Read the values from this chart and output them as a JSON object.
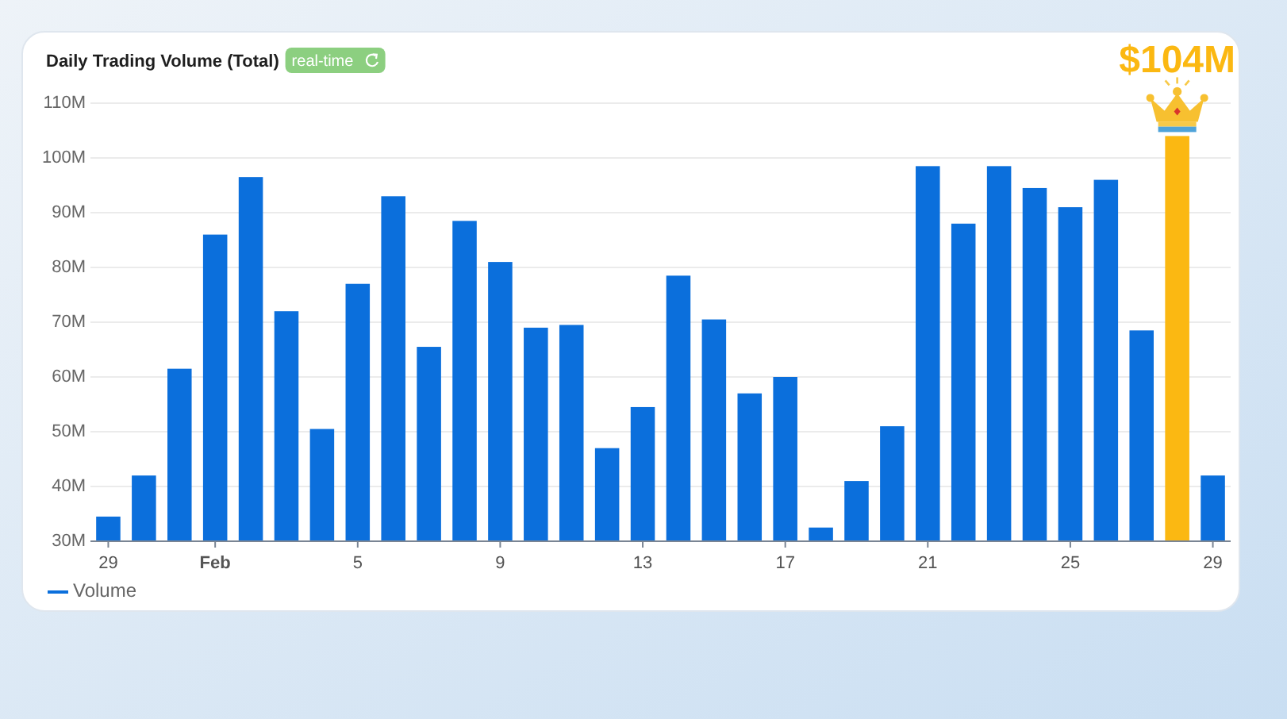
{
  "chart_data": {
    "type": "bar",
    "title": "Daily Trading Volume (Total)",
    "subtitle": "real-time",
    "categories": [
      "29",
      null,
      null,
      "Feb",
      null,
      null,
      null,
      "5",
      null,
      null,
      null,
      "9",
      null,
      null,
      null,
      "13",
      null,
      null,
      null,
      "17",
      null,
      null,
      null,
      "21",
      null,
      null,
      null,
      "25",
      null,
      null,
      null,
      "29"
    ],
    "series": [
      {
        "name": "Volume",
        "color": "#0b6fdc",
        "colors": [
          "#0b6fdc",
          "#0b6fdc",
          "#0b6fdc",
          "#0b6fdc",
          "#0b6fdc",
          "#0b6fdc",
          "#0b6fdc",
          "#0b6fdc",
          "#0b6fdc",
          "#0b6fdc",
          "#0b6fdc",
          "#0b6fdc",
          "#0b6fdc",
          "#0b6fdc",
          "#0b6fdc",
          "#0b6fdc",
          "#0b6fdc",
          "#0b6fdc",
          "#0b6fdc",
          "#0b6fdc",
          "#0b6fdc",
          "#0b6fdc",
          "#0b6fdc",
          "#0b6fdc",
          "#0b6fdc",
          "#0b6fdc",
          "#0b6fdc",
          "#0b6fdc",
          "#0b6fdc",
          "#0b6fdc",
          "#fbb812",
          "#0b6fdc"
        ],
        "values": [
          34.5,
          42,
          61.5,
          86,
          96.5,
          72,
          50.5,
          77,
          93,
          65.5,
          88.5,
          81,
          69,
          69.5,
          47,
          54.5,
          78.5,
          70.5,
          57,
          60,
          32.5,
          41,
          51,
          98.5,
          88,
          98.5,
          94.5,
          91,
          96,
          68.5,
          104,
          42
        ],
        "value_labels": [
          null,
          null,
          null,
          null,
          null,
          null,
          null,
          null,
          null,
          null,
          null,
          null,
          null,
          null,
          null,
          null,
          null,
          null,
          null,
          null,
          null,
          null,
          null,
          null,
          null,
          null,
          null,
          null,
          null,
          null,
          "$104M",
          null
        ]
      }
    ],
    "ylim": [
      30,
      110
    ],
    "yticks": [
      {
        "value": 30,
        "label": "30M"
      },
      {
        "value": 40,
        "label": "40M"
      },
      {
        "value": 50,
        "label": "50M"
      },
      {
        "value": 60,
        "label": "60M"
      },
      {
        "value": 70,
        "label": "70M"
      },
      {
        "value": 80,
        "label": "80M"
      },
      {
        "value": 90,
        "label": "90M"
      },
      {
        "value": 100,
        "label": "100M"
      },
      {
        "value": 110,
        "label": "110M"
      }
    ],
    "grid": "y",
    "legend": "bottom left"
  }
}
